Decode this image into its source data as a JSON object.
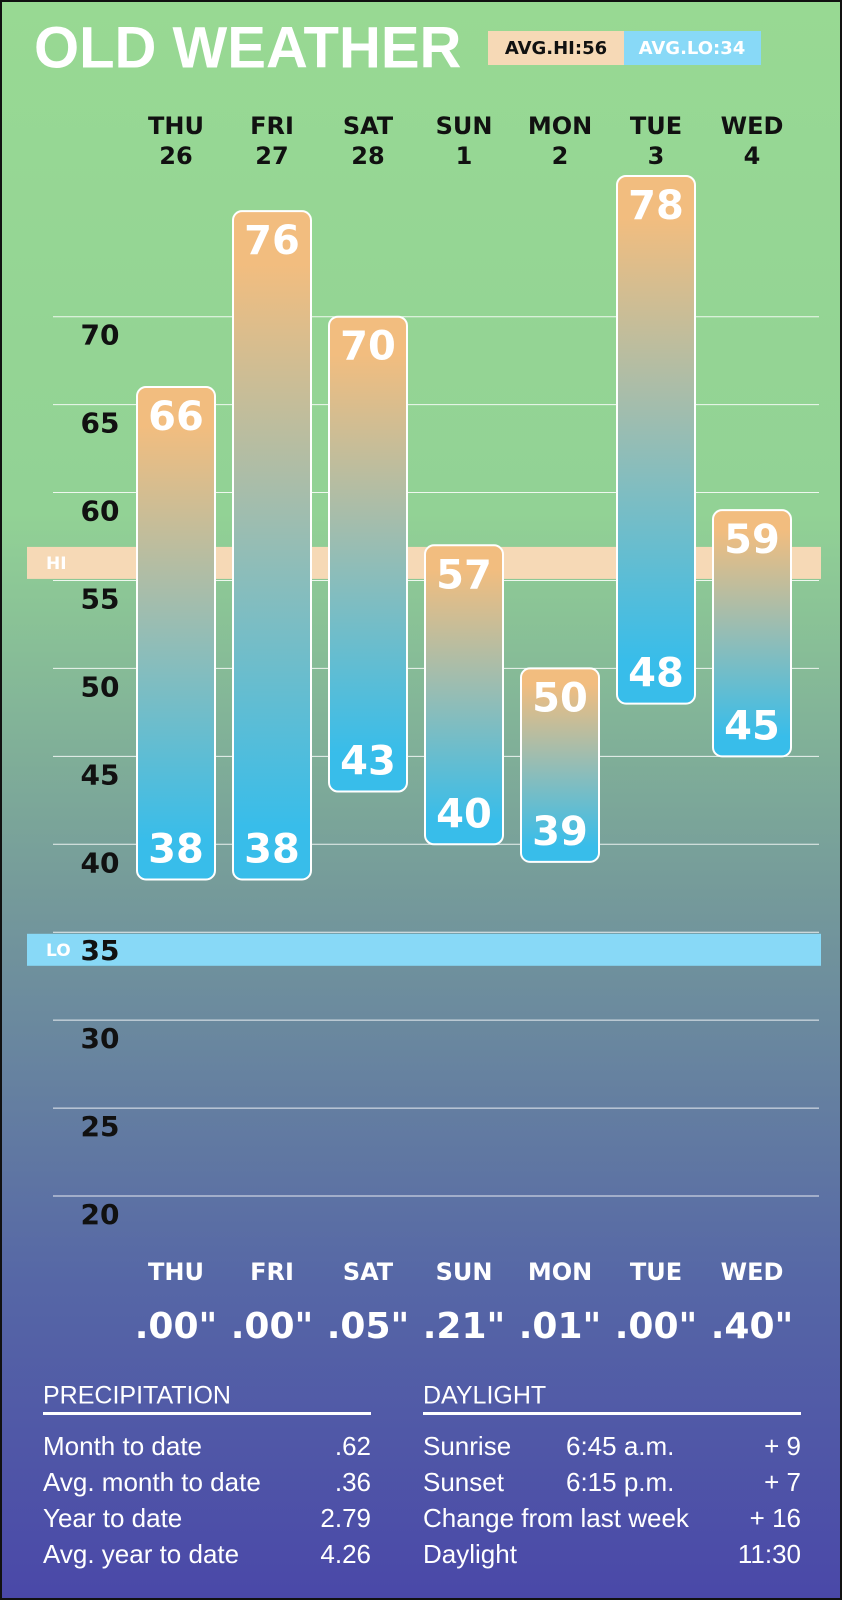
{
  "chart_data": {
    "type": "floating-bar",
    "title": "OLD WEATHER",
    "categories": [
      "THU",
      "FRI",
      "SAT",
      "SUN",
      "MON",
      "TUE",
      "WED"
    ],
    "dates": [
      26,
      27,
      28,
      1,
      2,
      3,
      4
    ],
    "high": [
      66,
      76,
      70,
      57,
      50,
      78,
      59
    ],
    "low": [
      38,
      38,
      43,
      40,
      39,
      48,
      45
    ],
    "high_color": "#f2bd7f",
    "low_color": "#38bdea",
    "ylim": [
      20,
      78
    ],
    "yticks": [
      20,
      25,
      30,
      35,
      40,
      45,
      50,
      55,
      60,
      65,
      70
    ],
    "grid": true,
    "reference_bands": [
      {
        "name": "HI",
        "value": 56,
        "label": "AVG.HI:56",
        "color": "#f6d9b6"
      },
      {
        "name": "LO",
        "value": 34,
        "label": "AVG.LO:34",
        "color": "#88d9f7"
      }
    ],
    "precipitation": [
      ".00\"",
      ".00\"",
      ".05\"",
      ".21\"",
      ".01\"",
      ".00\"",
      ".40\""
    ]
  },
  "tables": [
    {
      "title": "PRECIPITATION",
      "rows": [
        [
          "Month to date",
          ".62"
        ],
        [
          "Avg. month to date",
          ".36"
        ],
        [
          "Year to date",
          "2.79"
        ],
        [
          "Avg. year to date",
          "4.26"
        ]
      ]
    },
    {
      "title": "DAYLIGHT",
      "rows": [
        [
          "Sunrise",
          "6:45 a.m.",
          "+ 9"
        ],
        [
          "Sunset",
          "6:15 p.m.",
          "+ 7"
        ],
        [
          "Change from last week",
          "+ 16"
        ],
        [
          "Daylight",
          "11:30"
        ]
      ]
    }
  ]
}
